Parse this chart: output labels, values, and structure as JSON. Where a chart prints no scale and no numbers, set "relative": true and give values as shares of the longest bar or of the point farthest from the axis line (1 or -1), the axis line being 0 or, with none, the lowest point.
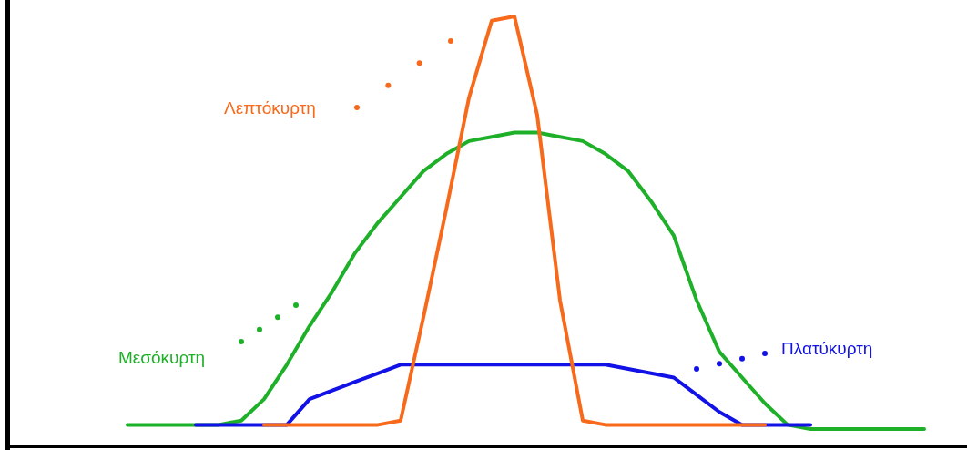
{
  "chart_data": {
    "type": "line",
    "relative": true,
    "marker": "none",
    "line_style": "solid",
    "categories": [
      null,
      null,
      null,
      null,
      null,
      null,
      null,
      null,
      null,
      null,
      null,
      null,
      null,
      null,
      null,
      null,
      null,
      null,
      null,
      null,
      null,
      null,
      null,
      null,
      null,
      null,
      null,
      null,
      null,
      null,
      null,
      null,
      null,
      null,
      null,
      null
    ],
    "series": [
      {
        "name": "Μεσόκυρτη",
        "color": "#1fb02a",
        "values": [
          0.05,
          0.05,
          0.05,
          0.05,
          0.05,
          0.06,
          0.11,
          0.19,
          0.28,
          0.36,
          0.45,
          0.52,
          0.58,
          0.64,
          0.68,
          0.71,
          0.72,
          0.73,
          0.73,
          0.72,
          0.71,
          0.68,
          0.64,
          0.57,
          0.49,
          0.34,
          0.22,
          0.16,
          0.1,
          0.05,
          0.04,
          0.04,
          0.04,
          0.04,
          0.04,
          0.04
        ]
      },
      {
        "name": "Πλατύκυρτη",
        "color": "#1212e6",
        "values": [
          null,
          null,
          null,
          0.05,
          0.05,
          0.05,
          0.05,
          0.05,
          0.11,
          0.13,
          0.15,
          0.17,
          0.19,
          0.19,
          0.19,
          0.19,
          0.19,
          0.19,
          0.19,
          0.19,
          0.19,
          0.19,
          0.18,
          0.17,
          0.16,
          0.12,
          0.08,
          0.05,
          0.05,
          0.05,
          0.05,
          null,
          null,
          null,
          null,
          null
        ]
      },
      {
        "name": "Λεπτόκυρτη",
        "color": "#f76a1c",
        "values": [
          null,
          null,
          null,
          null,
          null,
          null,
          0.05,
          0.05,
          0.05,
          0.05,
          0.05,
          0.05,
          0.06,
          0.3,
          0.55,
          0.81,
          0.99,
          1.0,
          0.77,
          0.34,
          0.06,
          0.05,
          0.05,
          0.05,
          0.05,
          0.05,
          0.05,
          0.05,
          0.05,
          null,
          null,
          null,
          null,
          null,
          null,
          null
        ]
      }
    ]
  }
}
